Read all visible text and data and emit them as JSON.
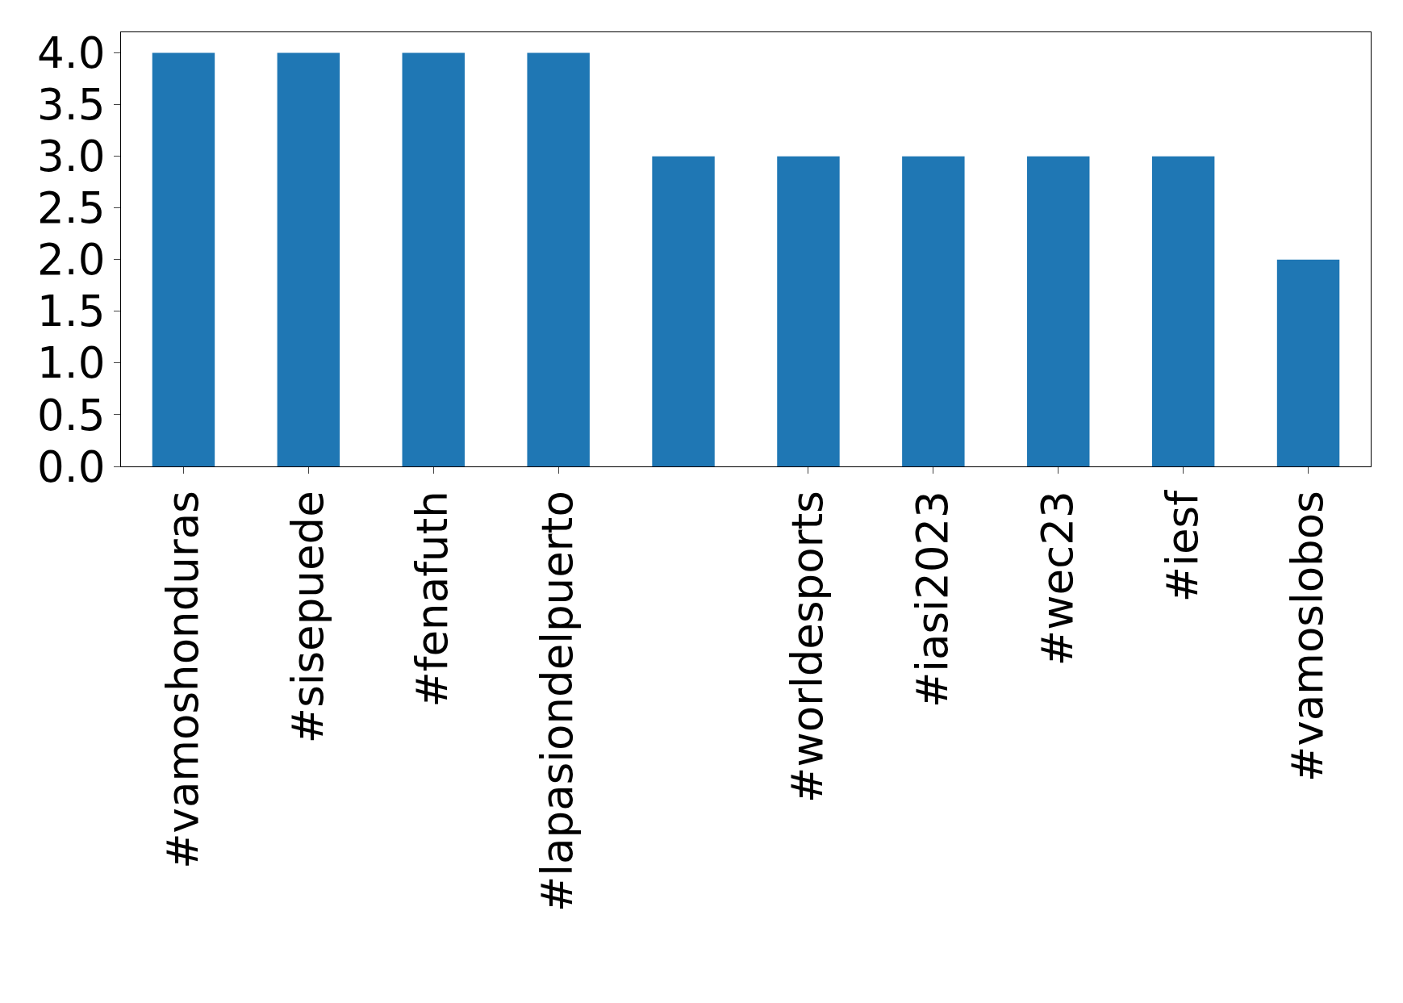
{
  "chart_data": {
    "type": "bar",
    "categories": [
      "#vamoshonduras",
      "#sisepuede",
      "#fenafuth",
      "#lapasiondelpuerto",
      null,
      "#worldesports",
      "#iasi2023",
      "#wec23",
      "#iesf",
      "#vamoslobos"
    ],
    "values": [
      4,
      4,
      4,
      4,
      3,
      3,
      3,
      3,
      3,
      2
    ],
    "color": "#1f77b4",
    "ylim": [
      0,
      4.2
    ],
    "yticks": [
      {
        "value": 0,
        "label": "0.0"
      },
      {
        "value": 0.5,
        "label": "0.5"
      },
      {
        "value": 1,
        "label": "1.0"
      },
      {
        "value": 1.5,
        "label": "1.5"
      },
      {
        "value": 2,
        "label": "2.0"
      },
      {
        "value": 2.5,
        "label": "2.5"
      },
      {
        "value": 3,
        "label": "3.0"
      },
      {
        "value": 3.5,
        "label": "3.5"
      },
      {
        "value": 4,
        "label": "4.0"
      }
    ],
    "grid": false,
    "legend": false
  }
}
